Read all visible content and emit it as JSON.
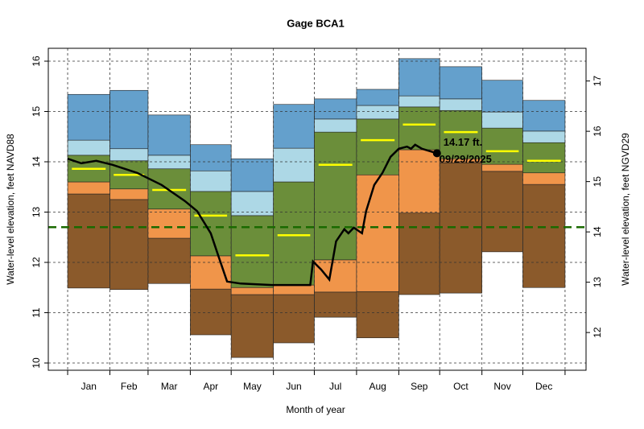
{
  "chart_data": {
    "type": "percentile_bands",
    "title": "Gage BCA1",
    "x_label": "Month of year",
    "y_label": "Water-level elevation, feet NAVD88",
    "y2_label": "Water-level elevation, feet NGVD29",
    "categories": [
      "Jan",
      "Feb",
      "Mar",
      "Apr",
      "May",
      "Jun",
      "Jul",
      "Aug",
      "Sep",
      "Oct",
      "Nov",
      "Dec"
    ],
    "month_edges": [
      0,
      31,
      59,
      90,
      120,
      151,
      181,
      212,
      243,
      273,
      304,
      334,
      365
    ],
    "xlim": [
      -14.2,
      380.4
    ],
    "ylim": [
      9.856,
      16.256
    ],
    "yticks": [
      10,
      11,
      12,
      13,
      14,
      15,
      16
    ],
    "y2lim": [
      11.25,
      17.65
    ],
    "y2ticks": [
      12,
      13,
      14,
      15,
      16,
      17
    ],
    "grid": true,
    "floor": [
      11.49,
      11.46,
      11.58,
      10.56,
      10.11,
      10.4,
      10.91,
      10.5,
      11.36,
      11.39,
      12.21,
      11.5
    ],
    "series": [
      {
        "color": "#8b5a2b",
        "values": [
          13.36,
          13.25,
          12.48,
          11.47,
          11.36,
          11.36,
          11.41,
          11.42,
          12.98,
          13.98,
          13.81,
          13.55
        ]
      },
      {
        "color": "#f0954a",
        "values": [
          13.6,
          13.46,
          13.06,
          12.13,
          11.5,
          11.55,
          12.05,
          13.74,
          14.24,
          14.06,
          13.95,
          13.78
        ]
      },
      {
        "color": "#6b8e3a",
        "values": [
          14.13,
          14.02,
          13.86,
          13.41,
          12.93,
          13.6,
          14.59,
          14.85,
          15.09,
          15.02,
          14.67,
          14.38
        ]
      },
      {
        "color": "#add8e6",
        "values": [
          14.43,
          14.26,
          14.13,
          13.82,
          13.41,
          14.27,
          14.85,
          15.12,
          15.31,
          15.25,
          14.99,
          14.61
        ]
      },
      {
        "color": "#64a0cc",
        "values": [
          15.34,
          15.42,
          14.93,
          14.34,
          14.06,
          15.14,
          15.25,
          15.44,
          16.05,
          15.89,
          15.62,
          15.22
        ]
      }
    ],
    "median": {
      "color": "#ffff00",
      "values": [
        13.86,
        13.74,
        13.44,
        12.93,
        12.14,
        12.54,
        13.94,
        14.43,
        14.74,
        14.59,
        14.21,
        14.02
      ]
    },
    "reference_line": {
      "color": "#1a6a00",
      "value": 12.7
    },
    "line": {
      "color": "#000000",
      "x": [
        0,
        10,
        21,
        33,
        51,
        69,
        86,
        95,
        105,
        111,
        117,
        127,
        150,
        178,
        180,
        186,
        192,
        197,
        203,
        206,
        210,
        216,
        219,
        225,
        231,
        237,
        243,
        249,
        252,
        255,
        260,
        271
      ],
      "values": [
        14.06,
        13.97,
        14.02,
        13.94,
        13.78,
        13.54,
        13.22,
        13.02,
        12.58,
        12.1,
        11.62,
        11.58,
        11.55,
        11.55,
        12.02,
        11.86,
        11.66,
        12.42,
        12.66,
        12.58,
        12.69,
        12.58,
        13.02,
        13.54,
        13.78,
        14.1,
        14.26,
        14.3,
        14.26,
        14.34,
        14.26,
        14.17
      ]
    },
    "point_label": "14.17 ft.",
    "point_date": "09/29/2025"
  }
}
